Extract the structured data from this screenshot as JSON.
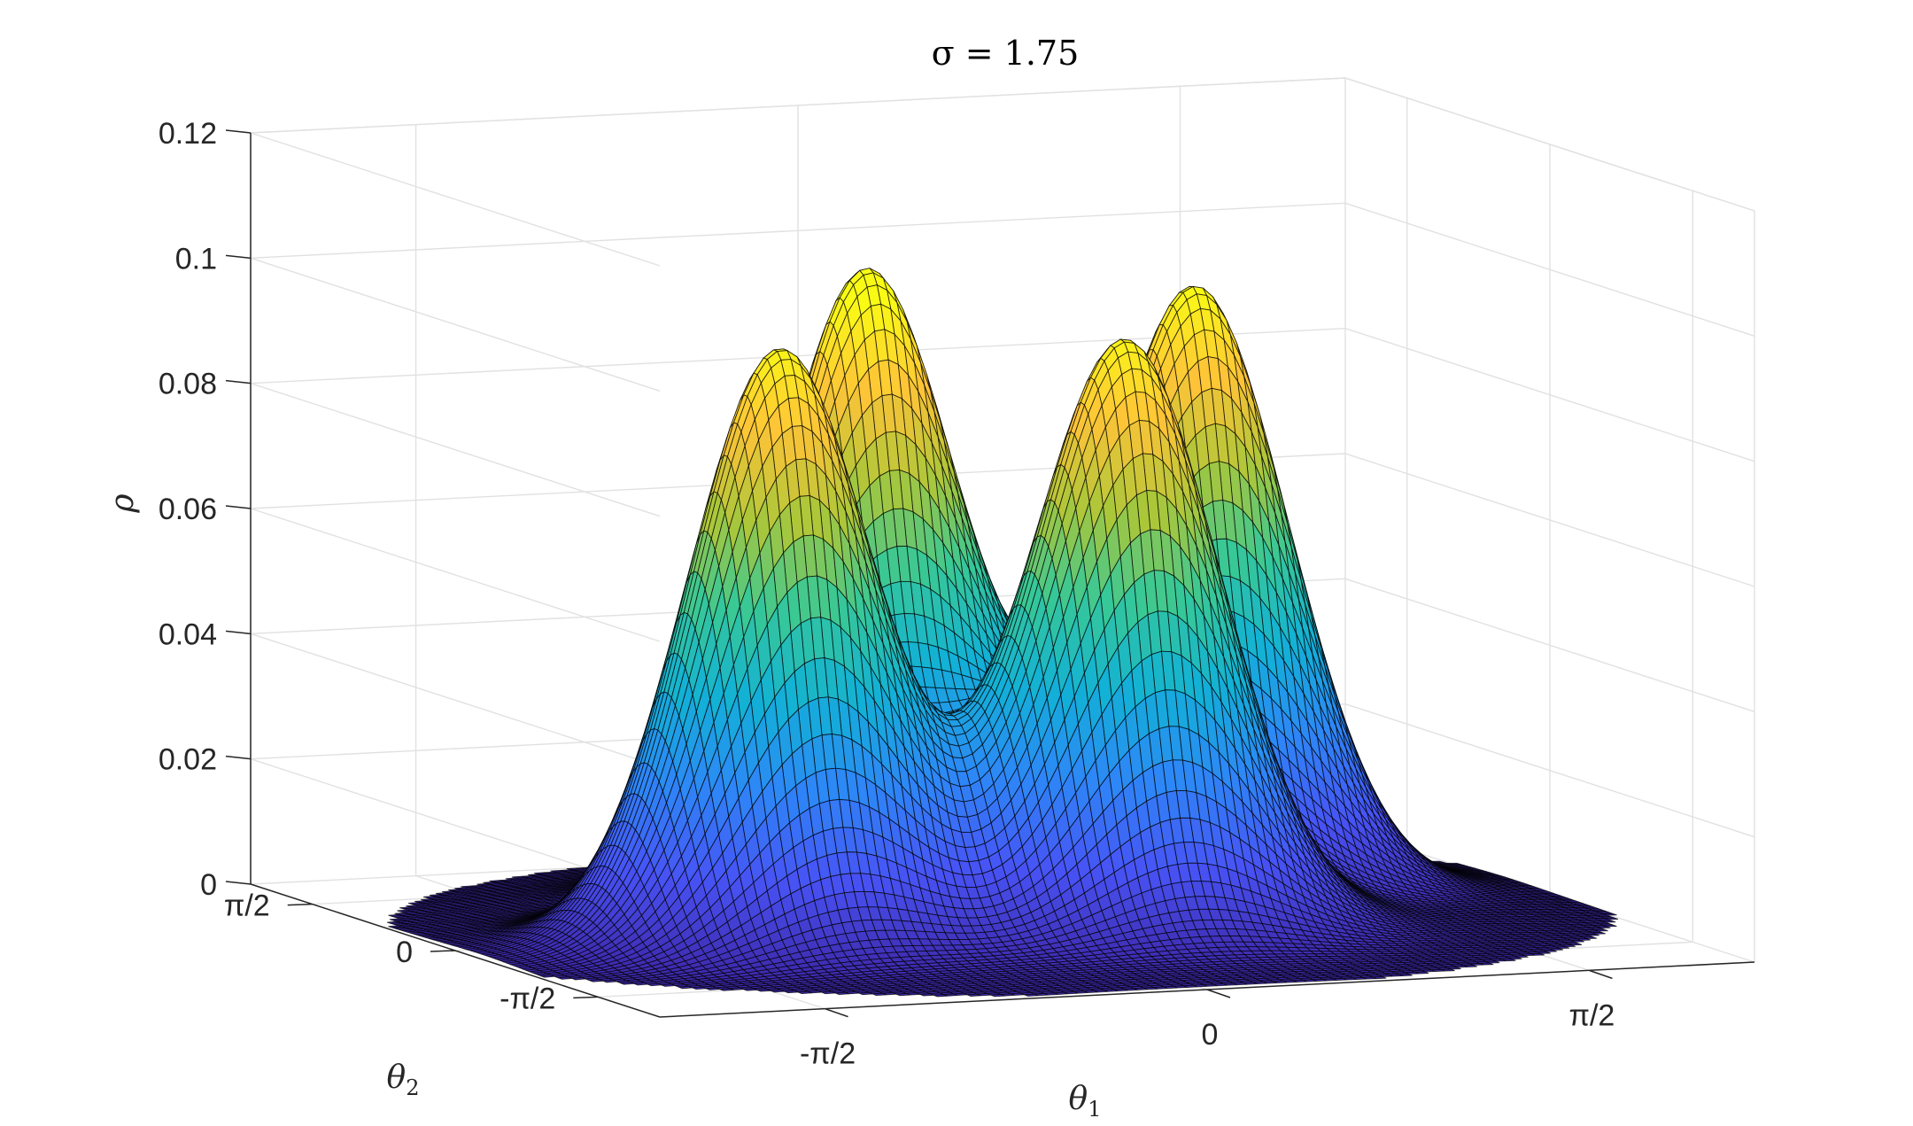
{
  "chart_data": {
    "type": "surface",
    "title": "σ = 1.75",
    "xlabel": "θ",
    "xlabel_sub": "1",
    "ylabel": "θ",
    "ylabel_sub": "2",
    "zlabel": "ρ",
    "xlim": [
      -2.25,
      2.25
    ],
    "ylim": [
      -2.25,
      2.25
    ],
    "zlim": [
      0,
      0.12
    ],
    "xticks": [
      -1.5708,
      0,
      1.5708
    ],
    "xticklabels": [
      "-π/2",
      "0",
      "π/2"
    ],
    "yticks": [
      -1.5708,
      0,
      1.5708
    ],
    "yticklabels": [
      "-π/2",
      "0",
      "π/2"
    ],
    "zticks": [
      0,
      0.02,
      0.04,
      0.06,
      0.08,
      0.1,
      0.12
    ],
    "zticklabels": [
      "0",
      "0.02",
      "0.04",
      "0.06",
      "0.08",
      "0.1",
      "0.12"
    ],
    "grid": true,
    "colormap": "parula",
    "grid_resolution": 110,
    "peaks": [
      {
        "theta1": -1.05,
        "theta2": -0.35,
        "rho": 0.092
      },
      {
        "theta1": -0.3,
        "theta2": 0.7,
        "rho": 0.097
      },
      {
        "theta1": 0.3,
        "theta2": -0.55,
        "rho": 0.09
      },
      {
        "theta1": 1.0,
        "theta2": 0.55,
        "rho": 0.094
      }
    ],
    "colors": {
      "mesh_edge": "#000000",
      "grid": "#e1e1e1",
      "axis": "#262626",
      "background": "#ffffff"
    }
  }
}
